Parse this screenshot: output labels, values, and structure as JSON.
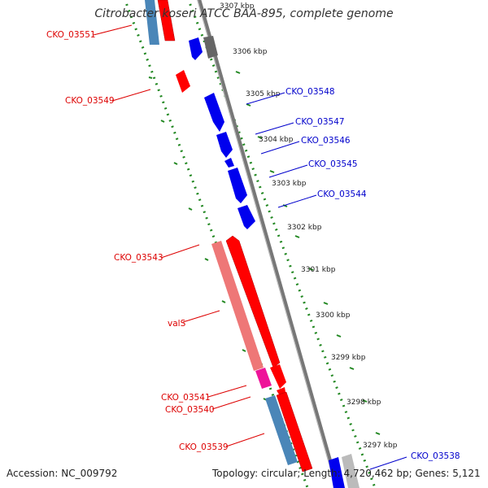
{
  "title": "Citrobacter koseri ATCC BAA-895, complete genome",
  "footer": {
    "accession": "Accession: NC_009792",
    "summary": "Topology: circular; Length: 4,720,462 bp; Genes: 5,121"
  },
  "colors": {
    "forward_strand": "#ff0000",
    "reverse_strand": "#0000ff",
    "label_forward": "#dd0000",
    "label_reverse": "#0000cc",
    "tick": "#228822",
    "axis": "#888888"
  },
  "position_ticks": [
    {
      "label": "3307 kbp"
    },
    {
      "label": "3306 kbp"
    },
    {
      "label": "3305 kbp"
    },
    {
      "label": "3304 kbp"
    },
    {
      "label": "3303 kbp"
    },
    {
      "label": "3302 kbp"
    },
    {
      "label": "3301 kbp"
    },
    {
      "label": "3300 kbp"
    },
    {
      "label": "3299 kbp"
    },
    {
      "label": "3298 kbp"
    },
    {
      "label": "3297 kbp"
    }
  ],
  "gene_labels_left": [
    {
      "name": "CKO_03551"
    },
    {
      "name": "CKO_03549"
    },
    {
      "name": "CKO_03543"
    },
    {
      "name": "valS"
    },
    {
      "name": "CKO_03541"
    },
    {
      "name": "CKO_03540"
    },
    {
      "name": "CKO_03539"
    }
  ],
  "gene_labels_right": [
    {
      "name": "CKO_03548"
    },
    {
      "name": "CKO_03547"
    },
    {
      "name": "CKO_03546"
    },
    {
      "name": "CKO_03545"
    },
    {
      "name": "CKO_03544"
    },
    {
      "name": "CKO_03538"
    }
  ]
}
